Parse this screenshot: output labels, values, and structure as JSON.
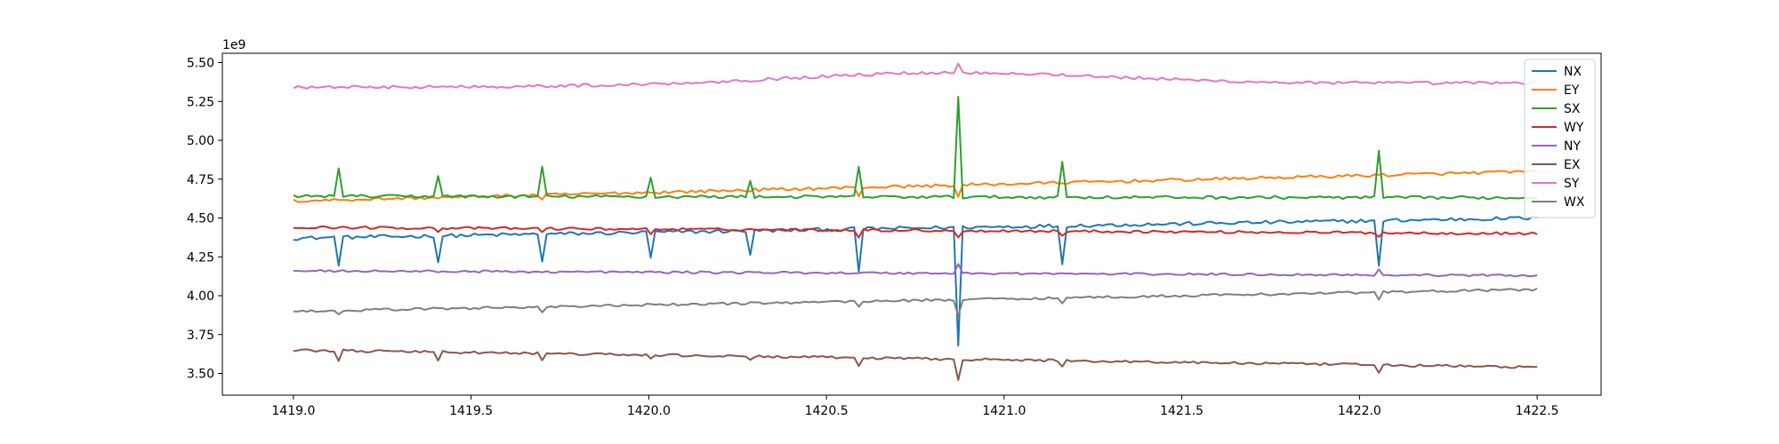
{
  "chart_data": {
    "type": "line",
    "title": "",
    "xlabel": "",
    "ylabel": "",
    "y_offset_label": "1e9",
    "xlim": [
      1418.8,
      1422.68
    ],
    "ylim": [
      3.36,
      5.56
    ],
    "x_ticks": [
      1419.0,
      1419.5,
      1420.0,
      1420.5,
      1421.0,
      1421.5,
      1422.0,
      1422.5
    ],
    "x_tick_labels": [
      "1419.0",
      "1419.5",
      "1420.0",
      "1420.5",
      "1421.0",
      "1421.5",
      "1422.0",
      "1422.5"
    ],
    "y_ticks": [
      3.5,
      3.75,
      4.0,
      4.25,
      4.5,
      4.75,
      5.0,
      5.25,
      5.5
    ],
    "y_tick_labels": [
      "3.50",
      "3.75",
      "4.00",
      "4.25",
      "4.50",
      "4.75",
      "5.00",
      "5.25",
      "5.50"
    ],
    "x_range": [
      1419.0,
      1422.5
    ],
    "n_points": 276,
    "legend_placement": "top-right",
    "grid": false,
    "events": [
      1419.13,
      1419.41,
      1419.7,
      1420.0,
      1420.29,
      1420.59,
      1420.87,
      1421.17,
      1422.05
    ],
    "series": [
      {
        "name": "NX",
        "color": "#1f77b4",
        "start": 4.37,
        "end": 4.5,
        "noise": 0.012,
        "spikes": [
          -0.17,
          -0.17,
          -0.17,
          -0.16,
          -0.15,
          -0.27,
          -0.76,
          -0.25,
          -0.3
        ]
      },
      {
        "name": "EY",
        "color": "#ff7f0e",
        "start": 4.61,
        "end": 4.8,
        "noise": 0.01,
        "spikes": [
          0,
          0,
          -0.03,
          0,
          0,
          -0.05,
          -0.08,
          0,
          0
        ]
      },
      {
        "name": "SX",
        "color": "#2ca02c",
        "start": 4.64,
        "end": 4.63,
        "noise": 0.01,
        "spikes": [
          0.19,
          0.14,
          0.19,
          0.12,
          0.11,
          0.2,
          0.65,
          0.23,
          0.3
        ]
      },
      {
        "name": "WY",
        "color": "#d62728",
        "start": 4.44,
        "end": 4.4,
        "noise": 0.008,
        "spikes": [
          0,
          -0.02,
          -0.02,
          -0.03,
          0,
          -0.04,
          -0.05,
          -0.03,
          -0.02
        ]
      },
      {
        "name": "NY",
        "color": "#9467bd",
        "start": 4.16,
        "end": 4.13,
        "noise": 0.007,
        "spikes": [
          0,
          0,
          0,
          0,
          0,
          0,
          0.06,
          0,
          0.03
        ]
      },
      {
        "name": "EX",
        "color": "#8c564b",
        "start": 3.65,
        "end": 3.54,
        "noise": 0.008,
        "spikes": [
          -0.06,
          -0.05,
          -0.04,
          -0.03,
          -0.03,
          -0.05,
          -0.13,
          -0.04,
          -0.05
        ]
      },
      {
        "name": "SY",
        "color": "#e377c2",
        "start": 5.34,
        "end": 5.37,
        "noise": 0.01,
        "bump": {
          "x": 1420.85,
          "height": 0.08,
          "width": 0.9
        },
        "spikes": [
          0,
          0,
          0,
          0,
          0,
          0,
          0.05,
          0,
          0
        ]
      },
      {
        "name": "WX",
        "color": "#7f7f7f",
        "start": 3.9,
        "end": 4.04,
        "noise": 0.008,
        "spikes": [
          -0.03,
          0,
          -0.03,
          0,
          0,
          -0.03,
          -0.1,
          -0.04,
          -0.04
        ]
      }
    ]
  }
}
